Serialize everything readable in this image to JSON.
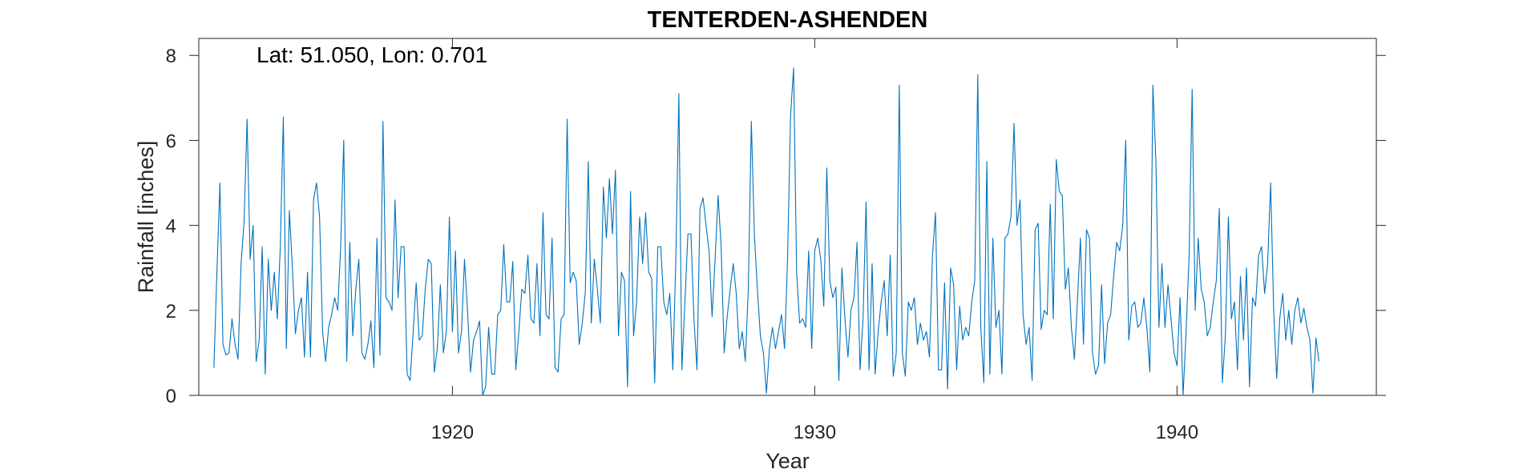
{
  "chart_data": {
    "type": "line",
    "title": "TENTERDEN-ASHENDEN",
    "xlabel": "Year",
    "ylabel": "Rainfall [inches]",
    "annotation": "Lat: 51.050, Lon: 0.701",
    "xlim": [
      1913.0,
      1945.5
    ],
    "ylim": [
      0,
      8.4
    ],
    "xticks": [
      1920,
      1930,
      1940
    ],
    "yticks": [
      0,
      2,
      4,
      6,
      8
    ],
    "grid": false,
    "line_color": "#0072BD",
    "series": [
      {
        "x_start": "1913-06",
        "x_step": "1 month",
        "values": [
          0.65,
          2.9,
          5.0,
          1.2,
          0.95,
          1.0,
          1.8,
          1.2,
          0.85,
          3.1,
          4.1,
          6.5,
          3.2,
          4.0,
          0.8,
          1.3,
          3.5,
          0.5,
          3.2,
          2.0,
          2.9,
          1.8,
          3.5,
          6.55,
          1.1,
          4.35,
          3.0,
          1.45,
          2.0,
          2.3,
          0.9,
          2.9,
          0.9,
          4.6,
          5.0,
          4.2,
          1.5,
          0.8,
          1.6,
          1.9,
          2.3,
          2.0,
          3.5,
          6.0,
          0.8,
          3.6,
          1.4,
          2.5,
          3.2,
          1.0,
          0.85,
          1.2,
          1.75,
          0.65,
          3.7,
          0.95,
          6.45,
          2.3,
          2.2,
          2.0,
          4.6,
          2.3,
          3.5,
          3.5,
          0.5,
          0.35,
          1.5,
          2.65,
          1.3,
          1.4,
          2.5,
          3.2,
          3.1,
          0.55,
          1.1,
          2.6,
          1.0,
          1.5,
          4.2,
          1.5,
          3.4,
          1.0,
          1.5,
          3.2,
          2.0,
          0.55,
          1.3,
          1.5,
          1.75,
          0.0,
          0.2,
          1.6,
          0.5,
          0.5,
          1.9,
          2.0,
          3.55,
          2.2,
          2.2,
          3.15,
          0.6,
          1.5,
          2.5,
          2.4,
          3.3,
          1.8,
          1.7,
          3.1,
          1.4,
          4.3,
          1.9,
          1.8,
          3.7,
          0.65,
          0.55,
          1.8,
          1.9,
          6.5,
          2.65,
          2.9,
          2.7,
          1.2,
          1.7,
          2.4,
          5.5,
          1.7,
          3.2,
          2.5,
          1.7,
          4.9,
          3.7,
          5.1,
          3.8,
          5.3,
          1.4,
          2.9,
          2.7,
          0.2,
          4.8,
          1.4,
          2.2,
          4.2,
          3.1,
          4.3,
          2.9,
          2.75,
          0.3,
          3.5,
          3.5,
          2.2,
          1.9,
          2.4,
          0.6,
          3.2,
          7.1,
          0.6,
          2.2,
          3.8,
          3.8,
          1.8,
          0.6,
          4.4,
          4.65,
          4.0,
          3.4,
          1.85,
          3.2,
          4.7,
          3.5,
          1.0,
          1.85,
          2.5,
          3.1,
          2.4,
          1.1,
          1.5,
          0.8,
          2.5,
          6.45,
          3.8,
          2.5,
          1.4,
          1.0,
          0.05,
          1.1,
          1.6,
          1.1,
          1.5,
          1.9,
          1.1,
          3.2,
          6.6,
          7.7,
          2.9,
          1.7,
          1.8,
          1.6,
          3.4,
          1.1,
          3.4,
          3.7,
          3.2,
          2.1,
          5.35,
          2.7,
          2.3,
          2.55,
          0.35,
          3.0,
          1.8,
          0.9,
          2.0,
          2.3,
          3.6,
          0.6,
          1.8,
          4.55,
          0.6,
          3.1,
          0.5,
          1.5,
          2.2,
          2.7,
          1.4,
          3.3,
          0.45,
          1.0,
          7.3,
          1.0,
          0.45,
          2.2,
          2.0,
          2.3,
          1.2,
          1.7,
          1.3,
          1.5,
          0.9,
          3.3,
          4.3,
          0.6,
          0.6,
          2.65,
          0.15,
          3.0,
          2.6,
          0.6,
          2.1,
          1.3,
          1.6,
          1.4,
          2.2,
          2.7,
          7.55,
          1.6,
          0.3,
          5.5,
          0.5,
          3.7,
          1.6,
          2.0,
          0.5,
          3.7,
          3.8,
          4.2,
          6.4,
          4.0,
          4.6,
          1.9,
          1.2,
          1.6,
          0.35,
          3.9,
          4.05,
          1.55,
          2.0,
          1.9,
          4.5,
          1.8,
          5.55,
          4.8,
          4.7,
          2.5,
          3.0,
          1.6,
          0.85,
          2.2,
          3.7,
          1.2,
          3.9,
          3.7,
          1.0,
          0.5,
          0.7,
          2.6,
          0.75,
          1.7,
          1.9,
          2.8,
          3.6,
          3.4,
          4.0,
          6.0,
          1.3,
          2.1,
          2.2,
          1.6,
          1.7,
          2.3,
          1.6,
          0.55,
          7.3,
          5.5,
          1.6,
          3.1,
          1.6,
          2.6,
          1.8,
          1.0,
          0.7,
          2.3,
          0.0,
          1.5,
          3.3,
          7.2,
          2.0,
          3.7,
          2.5,
          2.2,
          1.4,
          1.6,
          2.2,
          2.7,
          4.4,
          0.3,
          1.4,
          4.2,
          1.8,
          2.2,
          0.6,
          2.8,
          1.3,
          3.0,
          0.2,
          2.3,
          2.1,
          3.3,
          3.5,
          2.4,
          3.1,
          5.0,
          2.0,
          0.4,
          1.8,
          2.4,
          1.3,
          2.0,
          1.2,
          2.0,
          2.3,
          1.7,
          2.05,
          1.6,
          1.3,
          0.05,
          1.35,
          0.8
        ]
      }
    ]
  }
}
